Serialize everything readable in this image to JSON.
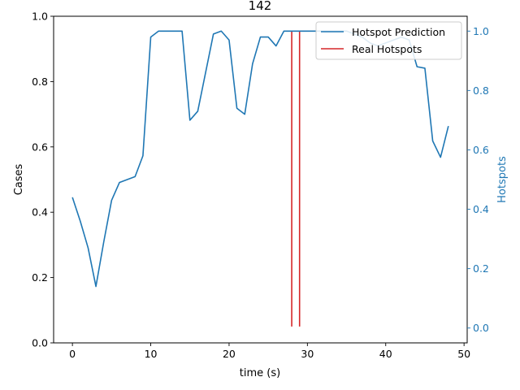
{
  "chart_data": {
    "type": "line",
    "title": "142",
    "xlabel": "time (s)",
    "ylabel": "Cases",
    "ylabel_right": "Hotspots",
    "xlim": [
      -2.4,
      50.4
    ],
    "ylim": [
      0.0,
      1.0
    ],
    "ylim_right": [
      -0.05,
      1.05
    ],
    "xticks": [
      "0",
      "10",
      "20",
      "30",
      "40",
      "50"
    ],
    "xtick_values": [
      0,
      10,
      20,
      30,
      40,
      50
    ],
    "yticks": [
      "0.0",
      "0.2",
      "0.4",
      "0.6",
      "0.8",
      "1.0"
    ],
    "ytick_values": [
      0.0,
      0.2,
      0.4,
      0.6,
      0.8,
      1.0
    ],
    "yticks_right": [
      "0.0",
      "0.2",
      "0.4",
      "0.6",
      "0.8",
      "1.0"
    ],
    "ytick_right_values": [
      0.0,
      0.2,
      0.4,
      0.6,
      0.8,
      1.0
    ],
    "grid": false,
    "legend_position": "top-right",
    "colors": {
      "prediction": "#1f77b4",
      "real": "#d62728",
      "right_axis": "#1f77b4"
    },
    "series": [
      {
        "name": "Hotspot Prediction",
        "axis": "right",
        "x": [
          0,
          1,
          2,
          3,
          4,
          5,
          6,
          7,
          8,
          9,
          10,
          11,
          12,
          13,
          14,
          15,
          16,
          17,
          18,
          19,
          20,
          21,
          22,
          23,
          24,
          25,
          26,
          27,
          28,
          29,
          30,
          31,
          32,
          33,
          34,
          35,
          36,
          37,
          38,
          39,
          40,
          41,
          42,
          43,
          44,
          45,
          46,
          47,
          48
        ],
        "values": [
          0.44,
          0.36,
          0.27,
          0.14,
          0.29,
          0.43,
          0.49,
          0.5,
          0.51,
          0.58,
          0.98,
          1.0,
          1.0,
          1.0,
          1.0,
          0.7,
          0.73,
          0.86,
          0.99,
          1.0,
          0.97,
          0.74,
          0.72,
          0.89,
          0.98,
          0.98,
          0.95,
          1.0,
          1.0,
          1.0,
          1.0,
          1.0,
          1.0,
          1.0,
          1.0,
          1.0,
          0.99,
          0.98,
          0.96,
          0.95,
          0.96,
          0.97,
          0.98,
          0.97,
          0.88,
          0.875,
          0.63,
          0.575,
          0.68
        ]
      },
      {
        "name": "Real Hotspots",
        "axis": "left",
        "type": "vlines",
        "x": [
          28,
          29
        ],
        "ymin": 0.05,
        "ymax": 0.955
      }
    ]
  }
}
